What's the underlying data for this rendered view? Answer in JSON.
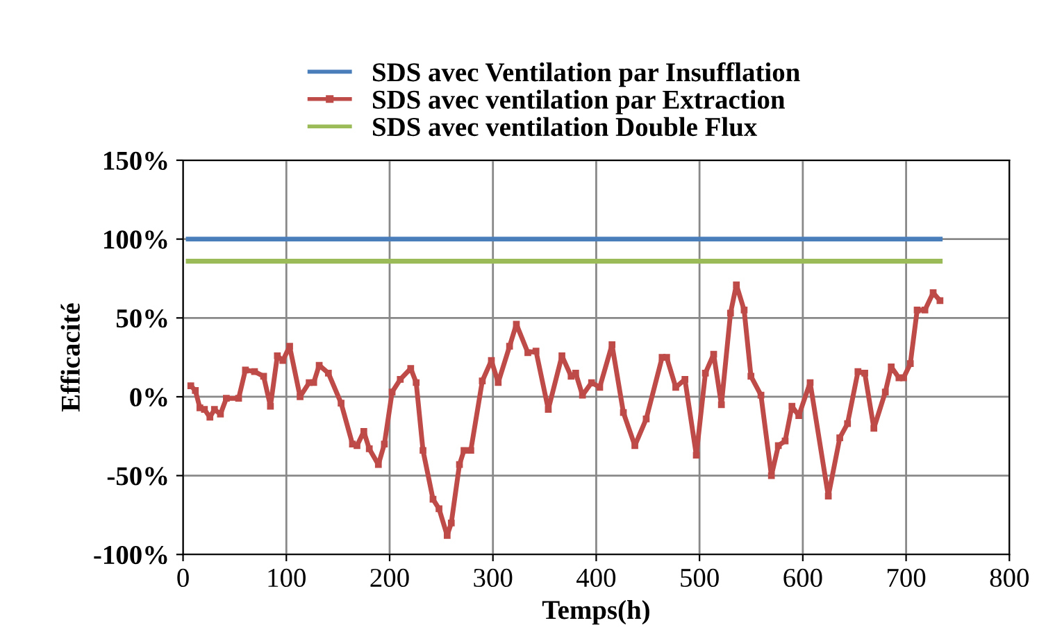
{
  "chart_data": {
    "type": "line",
    "xlabel": "Temps(h)",
    "ylabel": "Efficacité",
    "xlim": [
      0,
      800
    ],
    "xticks": [
      0,
      100,
      200,
      300,
      400,
      500,
      600,
      700,
      800
    ],
    "ylim": [
      -100,
      150
    ],
    "yticks": [
      {
        "value": -100,
        "label": "-100%"
      },
      {
        "value": -50,
        "label": "-50%"
      },
      {
        "value": 0,
        "label": "0%"
      },
      {
        "value": 50,
        "label": "50%"
      },
      {
        "value": 100,
        "label": "100%"
      },
      {
        "value": 150,
        "label": "150%"
      }
    ],
    "grid": true,
    "legend": "top",
    "marker": "none",
    "line_style": "solid",
    "series": [
      {
        "name": "SDS avec Ventilation par Insufflation",
        "color": "#4a7ebb",
        "x": [
          5,
          733
        ],
        "values": [
          100,
          100
        ]
      },
      {
        "name": "SDS avec ventilation par Extraction",
        "color": "#be4b48",
        "marker": "square",
        "x": [
          7.5,
          11.9,
          16.3,
          20.7,
          26,
          30.4,
          36.2,
          41.9,
          53.8,
          60.4,
          69.2,
          78,
          84.6,
          91.3,
          96.6,
          103.2,
          113.3,
          122.1,
          126.5,
          131.8,
          140.7,
          153,
          164,
          168.4,
          175,
          180.3,
          189.1,
          194.9,
          202.4,
          210.3,
          220.4,
          225.7,
          232.3,
          242,
          247.8,
          255.7,
          259.7,
          267.6,
          272,
          278.6,
          289.7,
          298.5,
          305.1,
          316.1,
          322.7,
          333.8,
          341.7,
          353.6,
          366.8,
          375.7,
          380.1,
          386.7,
          395.5,
          403.4,
          415.3,
          426.3,
          437.4,
          448.4,
          463.8,
          468.2,
          477,
          485.9,
          496.9,
          505.7,
          513.7,
          521.2,
          530,
          535.7,
          543.2,
          549.8,
          559.5,
          569.6,
          576.3,
          582.9,
          589.5,
          596.1,
          607.1,
          624.7,
          635.8,
          643.3,
          653.4,
          660,
          668.8,
          679.9,
          685.6,
          693.1,
          697.5,
          704.1,
          710.7,
          718.2,
          726.2,
          732.8
        ],
        "values": [
          7,
          4,
          -7,
          -8,
          -13,
          -8,
          -11,
          -1,
          -1,
          17,
          16,
          13,
          -6,
          26,
          23,
          32,
          0,
          9,
          9,
          20,
          15,
          -4,
          -30,
          -31,
          -22,
          -33,
          -43,
          -30,
          3,
          11,
          18,
          9,
          -34,
          -65,
          -71,
          -88,
          -80,
          -43,
          -34,
          -34,
          10,
          23,
          9,
          32,
          46,
          28,
          29,
          -8,
          26,
          13,
          15,
          1,
          9,
          6,
          33,
          -10,
          -31,
          -14,
          25,
          25,
          6,
          11,
          -37,
          15,
          27,
          -5,
          53,
          71,
          55,
          13,
          1,
          -50,
          -31,
          -28,
          -6,
          -12,
          9,
          -63,
          -26,
          -17,
          16,
          15,
          -20,
          3,
          19,
          12,
          12,
          21,
          55,
          55,
          66,
          61
        ]
      },
      {
        "name": "SDS avec ventilation Double Flux",
        "color": "#9bbb59",
        "x": [
          5,
          733
        ],
        "values": [
          86,
          86
        ]
      }
    ]
  }
}
